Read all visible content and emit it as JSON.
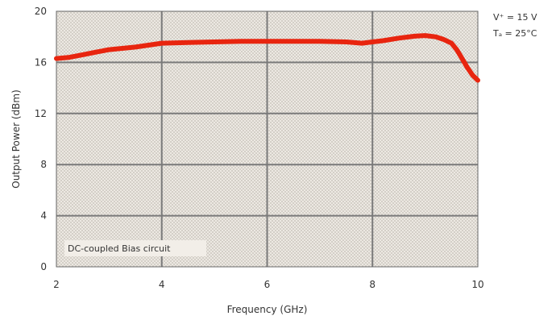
{
  "chart_data": {
    "type": "line",
    "title": "",
    "xlabel": "Frequency (GHz)",
    "ylabel": "Output Power (dBm)",
    "xlim": [
      2,
      10
    ],
    "ylim": [
      0,
      20
    ],
    "x_ticks": [
      "2",
      "4",
      "6",
      "8",
      "10"
    ],
    "y_ticks": [
      "0",
      "4",
      "8",
      "12",
      "16",
      "20"
    ],
    "grid": true,
    "annotation": "DC-coupled Bias circuit",
    "conditions": [
      "V⁺ = 15 V",
      "Tₐ = 25°C"
    ],
    "line_color": "#e8250f",
    "series": [
      {
        "x": [
          2.0,
          2.25,
          2.5,
          2.75,
          3.0,
          3.25,
          3.5,
          3.75,
          4.0,
          4.5,
          5.0,
          5.5,
          6.0,
          6.5,
          7.0,
          7.5,
          7.8,
          8.0,
          8.2,
          8.5,
          8.8,
          9.0,
          9.2,
          9.35,
          9.5,
          9.6,
          9.7,
          9.8,
          9.9,
          10.0
        ],
        "y": [
          16.3,
          16.4,
          16.6,
          16.8,
          17.0,
          17.1,
          17.2,
          17.35,
          17.5,
          17.55,
          17.6,
          17.65,
          17.65,
          17.65,
          17.65,
          17.6,
          17.5,
          17.6,
          17.7,
          17.9,
          18.05,
          18.1,
          18.0,
          17.8,
          17.5,
          17.0,
          16.3,
          15.6,
          15.0,
          14.6
        ]
      }
    ]
  }
}
